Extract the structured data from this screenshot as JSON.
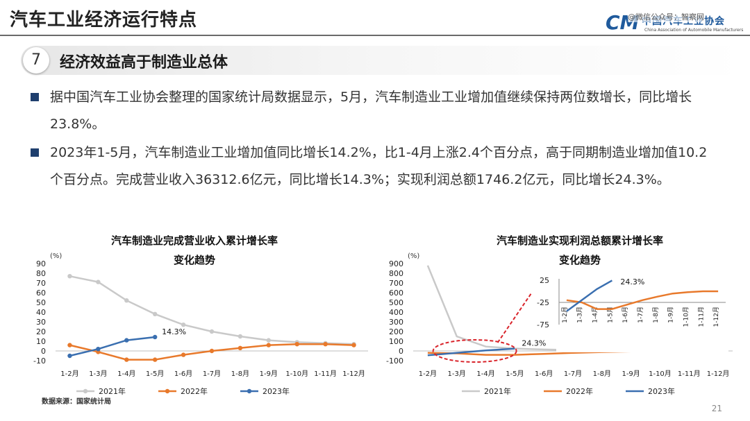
{
  "header": {
    "title": "汽车工业经济运行特点"
  },
  "logo": {
    "mark": "CM",
    "cn": "中国汽车工业协会",
    "en": "China Association of Automobile Manufacturers"
  },
  "watermark": "@微信公众号：智察网",
  "section": {
    "number": "7",
    "title": "经济效益高于制造业总体"
  },
  "bullets": [
    "据中国汽车工业协会整理的国家统计局数据显示，5月，汽车制造业工业增加值继续保持两位数增长，同比增长23.8%。",
    "2023年1-5月，汽车制造业工业增加值同比增长14.2%，比1-4月上涨2.4个百分点，高于同期制造业增加值10.2个百分点。完成营业收入36312.6亿元，同比增长14.3%；实现利润总额1746.2亿元，同比增长24.3%。"
  ],
  "colors": {
    "y2021": "#c9c9c9",
    "y2022": "#e8792b",
    "y2023": "#3a6fb0",
    "highlight": "#d9232a"
  },
  "page_number": "21",
  "chart_data": [
    {
      "type": "line",
      "title_line1": "汽车制造业完成营业收入累计增长率",
      "title_line2": "变化趋势",
      "unit_label": "(%)",
      "categories": [
        "1-2月",
        "1-3月",
        "1-4月",
        "1-5月",
        "1-6月",
        "1-7月",
        "1-8月",
        "1-9月",
        "1-10月",
        "1-11月",
        "1-12月"
      ],
      "ylim": [
        -10,
        90
      ],
      "yticks": [
        -10,
        0,
        10,
        20,
        30,
        40,
        50,
        60,
        70,
        80,
        90
      ],
      "series": [
        {
          "name": "2021年",
          "values": [
            77,
            71,
            52,
            38,
            27,
            20,
            15,
            11,
            9,
            8,
            7
          ]
        },
        {
          "name": "2022年",
          "values": [
            6,
            -1,
            -9,
            -9,
            -4,
            0,
            3,
            6,
            7,
            7,
            6
          ]
        },
        {
          "name": "2023年",
          "values": [
            -5,
            2,
            11,
            14.3,
            null,
            null,
            null,
            null,
            null,
            null,
            null
          ]
        }
      ],
      "annotation": "14.3%",
      "legend_position": "bottom",
      "source": "数据来源：国家统计局"
    },
    {
      "type": "line",
      "title_line1": "汽车制造业实现利润总额累计增长率",
      "title_line2": "变化趋势",
      "unit_label": "(%)",
      "categories": [
        "1-2月",
        "1-3月",
        "1-4月",
        "1-5月",
        "1-6月",
        "1-7月",
        "1-8月",
        "1-9月",
        "1-10月",
        "1-11月",
        "1-12月"
      ],
      "ylim": [
        -100,
        900
      ],
      "yticks": [
        -100,
        0,
        100,
        200,
        300,
        400,
        500,
        600,
        700,
        800,
        900
      ],
      "series": [
        {
          "name": "2021年",
          "values": [
            880,
            150,
            45,
            25,
            15,
            10,
            5,
            2,
            0,
            0,
            -2
          ]
        },
        {
          "name": "2022年",
          "values": [
            -20,
            -25,
            -40,
            -40,
            -30,
            -20,
            -12,
            -5,
            -2,
            0,
            0
          ]
        },
        {
          "name": "2023年",
          "values": [
            -45,
            -20,
            5,
            24.3,
            null,
            null,
            null,
            null,
            null,
            null,
            null
          ]
        }
      ],
      "annotation": "24.3%",
      "legend_position": "bottom",
      "inset": {
        "yticks": [
          -75,
          -25,
          25
        ],
        "ylim": [
          -75,
          25
        ],
        "annotation": "24.3%"
      }
    }
  ]
}
